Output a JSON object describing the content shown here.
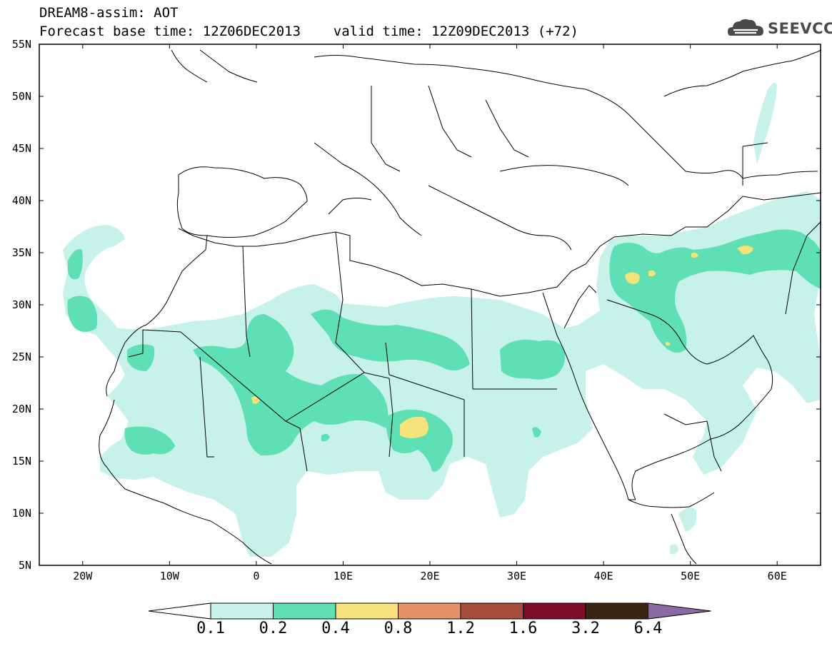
{
  "header": {
    "line1": "DREAM8-assim: AOT",
    "line2": "Forecast base time: 12Z06DEC2013    valid time: 12Z09DEC2013 (+72)",
    "logo_text": "SEEVCCC"
  },
  "map": {
    "lon_range": [
      -25,
      65
    ],
    "lat_range": [
      5,
      55
    ],
    "lat_ticks": [
      "55N",
      "50N",
      "45N",
      "40N",
      "35N",
      "30N",
      "25N",
      "20N",
      "15N",
      "10N",
      "5N"
    ],
    "lon_ticks": [
      "20W",
      "10W",
      "0",
      "10E",
      "20E",
      "30E",
      "40E",
      "50E",
      "60E"
    ],
    "field": "Aerosol optical thickness (dust)"
  },
  "legend": {
    "labels": [
      "0.1",
      "0.2",
      "0.4",
      "0.8",
      "1.2",
      "1.6",
      "3.2",
      "6.4"
    ],
    "colors": [
      "#ffffff",
      "#c6f2ea",
      "#5fdfb4",
      "#f5e27a",
      "#e4926a",
      "#a94e3c",
      "#7c0c27",
      "#3c2413",
      "#8a6aa2"
    ]
  }
}
